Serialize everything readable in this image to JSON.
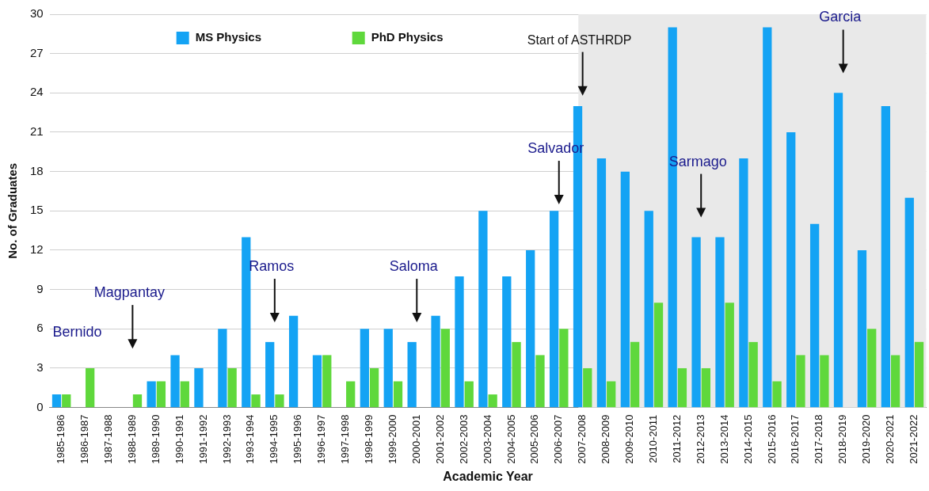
{
  "chart_data": {
    "type": "bar",
    "xlabel": "Academic Year",
    "ylabel": "No. of Graduates",
    "categories": [
      "1985-1986",
      "1986-1987",
      "1987-1988",
      "1988-1989",
      "1989-1990",
      "1990-1991",
      "1991-1992",
      "1992-1993",
      "1993-1994",
      "1994-1995",
      "1995-1996",
      "1996-1997",
      "1997-1998",
      "1998-1999",
      "1999-2000",
      "2000-2001",
      "2001-2002",
      "2002-2003",
      "2003-2004",
      "2004-2005",
      "2005-2006",
      "2006-2007",
      "2007-2008",
      "2008-2009",
      "2009-2010",
      "2010-2011",
      "2011-2012",
      "2012-2013",
      "2013-2014",
      "2014-2015",
      "2015-2016",
      "2016-2017",
      "2017-2018",
      "2018-2019",
      "2019-2020",
      "2020-2021",
      "2021-2022"
    ],
    "series": [
      {
        "name": "MS Physics",
        "color": "#14a3f4",
        "values": [
          1,
          0,
          0,
          0,
          2,
          4,
          3,
          6,
          13,
          5,
          7,
          4,
          0,
          6,
          6,
          5,
          7,
          10,
          15,
          10,
          12,
          15,
          23,
          19,
          18,
          15,
          29,
          13,
          13,
          19,
          29,
          21,
          14,
          24,
          12,
          23,
          16
        ]
      },
      {
        "name": "PhD Physics",
        "color": "#5fd83c",
        "values": [
          1,
          3,
          0,
          1,
          2,
          2,
          0,
          3,
          1,
          1,
          0,
          4,
          2,
          3,
          2,
          0,
          6,
          2,
          1,
          5,
          4,
          6,
          3,
          2,
          5,
          8,
          3,
          3,
          8,
          5,
          2,
          4,
          4,
          0,
          6,
          4,
          5
        ]
      }
    ],
    "ylim": [
      0,
      30
    ],
    "yticks": [
      0,
      3,
      6,
      9,
      12,
      15,
      18,
      21,
      24,
      27,
      30
    ],
    "grid": "y",
    "legend": "top left",
    "bands": [
      {
        "axis": "x",
        "from": "2007-2008",
        "to": "2021-2022",
        "color": "#e9e9e9"
      }
    ],
    "annotations": [
      "Bernido",
      "Magpantay",
      "Ramos",
      "Saloma",
      "Salvador",
      "Start of ASTHRDP",
      "Sarmago",
      "Garcia"
    ]
  }
}
